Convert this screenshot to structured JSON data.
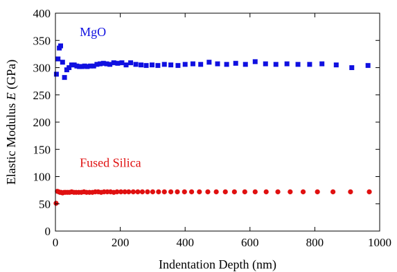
{
  "chart_data": {
    "type": "scatter",
    "xlabel": "Indentation Depth (nm)",
    "ylabel_prefix": "Elastic Modulus ",
    "ylabel_symbol": "E",
    "ylabel_suffix": " (GPa)",
    "xlim": [
      0,
      1000
    ],
    "ylim": [
      0,
      400
    ],
    "x_ticks": [
      0,
      200,
      400,
      600,
      800,
      1000
    ],
    "y_ticks": [
      0,
      50,
      100,
      150,
      200,
      250,
      300,
      350,
      400
    ],
    "x_tick_labels": [
      "0",
      "200",
      "400",
      "600",
      "800",
      "1000"
    ],
    "y_tick_labels": [
      "0",
      "50",
      "100",
      "150",
      "200",
      "250",
      "300",
      "350",
      "400"
    ],
    "grid": false,
    "series": [
      {
        "name": "MgO",
        "color": "#1010e0",
        "marker": "square",
        "x": [
          3,
          8,
          12,
          16,
          22,
          28,
          35,
          42,
          50,
          58,
          66,
          74,
          82,
          90,
          98,
          108,
          118,
          128,
          138,
          148,
          158,
          168,
          180,
          192,
          205,
          218,
          232,
          248,
          264,
          280,
          298,
          316,
          336,
          356,
          378,
          400,
          424,
          448,
          474,
          500,
          528,
          556,
          586,
          616,
          648,
          680,
          714,
          748,
          784,
          822,
          866,
          914,
          964
        ],
        "y": [
          288,
          316,
          336,
          340,
          310,
          282,
          296,
          300,
          305,
          305,
          303,
          302,
          302,
          303,
          302,
          303,
          303,
          306,
          307,
          308,
          307,
          306,
          309,
          308,
          309,
          305,
          309,
          306,
          305,
          304,
          305,
          304,
          306,
          305,
          304,
          306,
          307,
          306,
          310,
          307,
          306,
          308,
          306,
          311,
          307,
          306,
          307,
          306,
          306,
          307,
          305,
          300,
          304
        ]
      },
      {
        "name": "Fused Silica",
        "color": "#e01010",
        "marker": "circle",
        "x": [
          2,
          6,
          10,
          14,
          18,
          22,
          27,
          32,
          38,
          44,
          50,
          57,
          64,
          72,
          80,
          88,
          96,
          105,
          114,
          123,
          132,
          141,
          150,
          160,
          170,
          180,
          190,
          202,
          214,
          226,
          240,
          254,
          268,
          284,
          300,
          318,
          336,
          356,
          376,
          398,
          420,
          444,
          470,
          496,
          524,
          552,
          584,
          616,
          650,
          686,
          724,
          764,
          808,
          856,
          910,
          968
        ],
        "y": [
          51,
          73,
          72,
          71,
          71,
          70,
          71,
          71,
          71,
          71,
          72,
          71,
          71,
          71,
          71,
          72,
          71,
          71,
          71,
          72,
          72,
          71,
          72,
          72,
          72,
          71,
          72,
          72,
          72,
          72,
          72,
          72,
          72,
          72,
          72,
          72,
          72,
          72,
          72,
          72,
          72,
          72,
          72,
          72,
          72,
          72,
          72,
          72,
          72,
          72,
          72,
          72,
          72,
          72,
          72,
          72
        ]
      }
    ],
    "annotations": [
      {
        "text": "MgO",
        "x": 75,
        "y": 358,
        "color": "#1010e0"
      },
      {
        "text": "Fused Silica",
        "x": 75,
        "y": 118,
        "color": "#e01010"
      }
    ]
  }
}
